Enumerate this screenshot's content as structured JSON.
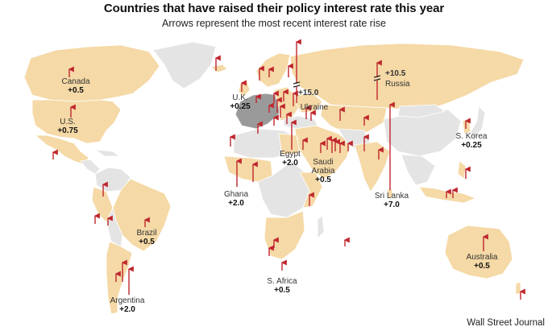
{
  "title": "Countries that have raised their policy interest rate this year",
  "subtitle": "Arrows represent the most recent interest rate rise",
  "source": "Wall Street Journal",
  "colors": {
    "raised": "#f5d9a6",
    "not_raised": "#e4e4e4",
    "euro_area": "#9a9a9a",
    "arrow": "#c0262d",
    "border": "#ffffff"
  },
  "labels": {
    "canada": {
      "name": "Canada",
      "value": "+0.5"
    },
    "us": {
      "name": "U.S.",
      "value": "+0.75"
    },
    "uk": {
      "name": "U.K.",
      "value": "+0.25"
    },
    "ukraine": {
      "name": "Ukraine",
      "value": "+15.0"
    },
    "russia": {
      "name": "Russia",
      "value": "+10.5"
    },
    "egypt": {
      "name": "Egypt",
      "value": "+2.0"
    },
    "saudi": {
      "name": "Saudi Arabia",
      "value": "+0.5"
    },
    "ghana": {
      "name": "Ghana",
      "value": "+2.0"
    },
    "srilanka": {
      "name": "Sri Lanka",
      "value": "+7.0"
    },
    "skorea": {
      "name": "S. Korea",
      "value": "+0.25"
    },
    "brazil": {
      "name": "Brazil",
      "value": "+0.5"
    },
    "argentina": {
      "name": "Argentina",
      "value": "+2.0"
    },
    "safrica": {
      "name": "S. Africa",
      "value": "+0.5"
    },
    "australia": {
      "name": "Australia",
      "value": "+0.5"
    }
  }
}
